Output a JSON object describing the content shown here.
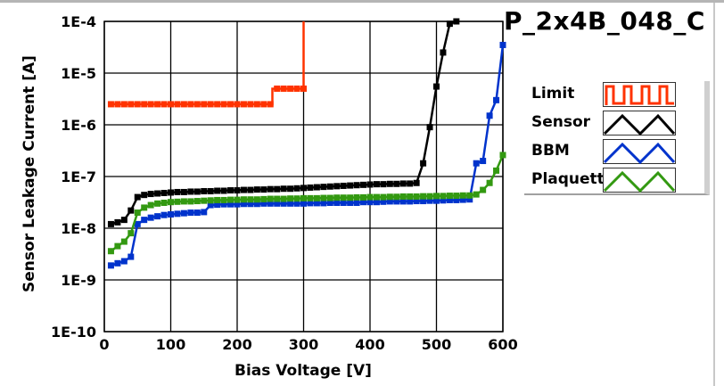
{
  "title": "P_2x4B_048_C",
  "chart_data": {
    "type": "line",
    "title": "P_2x4B_048_C",
    "xlabel": "Bias Voltage [V]",
    "ylabel": "Sensor Leakage Current [A]",
    "xlim": [
      0,
      600
    ],
    "ylim": [
      1e-10,
      0.0001
    ],
    "yscale": "log",
    "grid": true,
    "legend_placement": "right",
    "xticks": [
      "0",
      "100",
      "200",
      "300",
      "400",
      "500",
      "600"
    ],
    "yticks": [
      "1E-10",
      "1E-9",
      "1E-8",
      "1E-7",
      "1E-6",
      "1E-5",
      "1E-4"
    ],
    "series": [
      {
        "name": "Limit",
        "color": "#ff3300",
        "step": true,
        "x": [
          10,
          20,
          30,
          40,
          50,
          60,
          70,
          80,
          90,
          100,
          110,
          120,
          130,
          140,
          150,
          160,
          170,
          180,
          190,
          200,
          210,
          220,
          230,
          240,
          250,
          260,
          270,
          280,
          290,
          300,
          300
        ],
        "y": [
          2.5e-06,
          2.5e-06,
          2.5e-06,
          2.5e-06,
          2.5e-06,
          2.5e-06,
          2.5e-06,
          2.5e-06,
          2.5e-06,
          2.5e-06,
          2.5e-06,
          2.5e-06,
          2.5e-06,
          2.5e-06,
          2.5e-06,
          2.5e-06,
          2.5e-06,
          2.5e-06,
          2.5e-06,
          2.5e-06,
          2.5e-06,
          2.5e-06,
          2.5e-06,
          2.5e-06,
          2.5e-06,
          5e-06,
          5e-06,
          5e-06,
          5e-06,
          5e-06,
          0.0001
        ]
      },
      {
        "name": "Sensor",
        "color": "#000000",
        "step": false,
        "x": [
          10,
          20,
          30,
          40,
          50,
          60,
          70,
          80,
          90,
          100,
          110,
          120,
          130,
          140,
          150,
          160,
          170,
          180,
          190,
          200,
          210,
          220,
          230,
          240,
          250,
          260,
          270,
          280,
          290,
          300,
          310,
          320,
          330,
          340,
          350,
          360,
          370,
          380,
          390,
          400,
          410,
          420,
          430,
          440,
          450,
          460,
          470,
          480,
          490,
          500,
          510,
          520,
          530
        ],
        "y": [
          1.2e-08,
          1.3e-08,
          1.45e-08,
          2.2e-08,
          4e-08,
          4.4e-08,
          4.6e-08,
          4.7e-08,
          4.8e-08,
          4.9e-08,
          5e-08,
          5e-08,
          5.1e-08,
          5.1e-08,
          5.2e-08,
          5.2e-08,
          5.3e-08,
          5.3e-08,
          5.4e-08,
          5.4e-08,
          5.5e-08,
          5.5e-08,
          5.6e-08,
          5.6e-08,
          5.7e-08,
          5.7e-08,
          5.8e-08,
          5.8e-08,
          5.9e-08,
          6e-08,
          6.1e-08,
          6.2e-08,
          6.3e-08,
          6.4e-08,
          6.5e-08,
          6.6e-08,
          6.7e-08,
          6.8e-08,
          6.9e-08,
          7e-08,
          7.1e-08,
          7.1e-08,
          7.2e-08,
          7.2e-08,
          7.3e-08,
          7.3e-08,
          7.5e-08,
          1.8e-07,
          9e-07,
          5.5e-06,
          2.5e-05,
          9e-05,
          0.0001
        ]
      },
      {
        "name": "BBM",
        "color": "#0033cc",
        "step": false,
        "x": [
          10,
          20,
          30,
          40,
          50,
          60,
          70,
          80,
          90,
          100,
          110,
          120,
          130,
          140,
          150,
          160,
          170,
          180,
          190,
          200,
          210,
          220,
          230,
          240,
          250,
          260,
          270,
          280,
          290,
          300,
          310,
          320,
          330,
          340,
          350,
          360,
          370,
          380,
          390,
          400,
          410,
          420,
          430,
          440,
          450,
          460,
          470,
          480,
          490,
          500,
          510,
          520,
          530,
          540,
          550,
          560,
          570,
          580,
          590,
          600
        ],
        "y": [
          1.9e-09,
          2.1e-09,
          2.3e-09,
          2.8e-09,
          1.2e-08,
          1.45e-08,
          1.6e-08,
          1.7e-08,
          1.8e-08,
          1.85e-08,
          1.9e-08,
          1.95e-08,
          2e-08,
          2e-08,
          2.05e-08,
          2.8e-08,
          2.85e-08,
          2.9e-08,
          2.9e-08,
          2.9e-08,
          2.95e-08,
          2.95e-08,
          2.95e-08,
          3e-08,
          3e-08,
          3e-08,
          3e-08,
          3e-08,
          3e-08,
          3e-08,
          3.05e-08,
          3.05e-08,
          3.05e-08,
          3.1e-08,
          3.1e-08,
          3.1e-08,
          3.1e-08,
          3.1e-08,
          3.2e-08,
          3.2e-08,
          3.2e-08,
          3.25e-08,
          3.3e-08,
          3.3e-08,
          3.3e-08,
          3.3e-08,
          3.35e-08,
          3.35e-08,
          3.4e-08,
          3.4e-08,
          3.45e-08,
          3.5e-08,
          3.5e-08,
          3.55e-08,
          3.6e-08,
          1.8e-07,
          2e-07,
          1.5e-06,
          3e-06,
          3.5e-05
        ]
      },
      {
        "name": "Plaquette",
        "color": "#339911",
        "step": false,
        "x": [
          10,
          20,
          30,
          40,
          50,
          60,
          70,
          80,
          90,
          100,
          110,
          120,
          130,
          140,
          150,
          160,
          170,
          180,
          190,
          200,
          210,
          220,
          230,
          240,
          250,
          260,
          270,
          280,
          290,
          300,
          310,
          320,
          330,
          340,
          350,
          360,
          370,
          380,
          390,
          400,
          410,
          420,
          430,
          440,
          450,
          460,
          470,
          480,
          490,
          500,
          510,
          520,
          530,
          540,
          550,
          560,
          570,
          580,
          590,
          600
        ],
        "y": [
          3.6e-09,
          4.5e-09,
          5.5e-09,
          8e-09,
          2e-08,
          2.5e-08,
          2.8e-08,
          3e-08,
          3.1e-08,
          3.2e-08,
          3.25e-08,
          3.3e-08,
          3.3e-08,
          3.35e-08,
          3.4e-08,
          3.45e-08,
          3.5e-08,
          3.5e-08,
          3.55e-08,
          3.55e-08,
          3.6e-08,
          3.6e-08,
          3.6e-08,
          3.65e-08,
          3.7e-08,
          3.7e-08,
          3.7e-08,
          3.75e-08,
          3.75e-08,
          3.8e-08,
          3.8e-08,
          3.8e-08,
          3.85e-08,
          3.85e-08,
          3.9e-08,
          3.9e-08,
          3.9e-08,
          3.95e-08,
          3.95e-08,
          4e-08,
          4e-08,
          4e-08,
          4.05e-08,
          4.05e-08,
          4.1e-08,
          4.1e-08,
          4.1e-08,
          4.15e-08,
          4.15e-08,
          4.2e-08,
          4.2e-08,
          4.25e-08,
          4.25e-08,
          4.3e-08,
          4.3e-08,
          4.5e-08,
          5.5e-08,
          7.5e-08,
          1.3e-07,
          2.6e-07
        ]
      }
    ]
  }
}
